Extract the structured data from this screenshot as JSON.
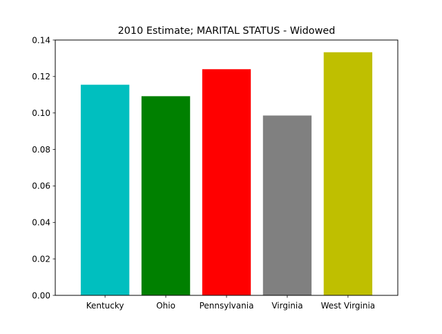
{
  "chart_data": {
    "type": "bar",
    "title": "2010 Estimate; MARITAL STATUS - Widowed",
    "xlabel": "",
    "ylabel": "",
    "categories": [
      "Kentucky",
      "Ohio",
      "Pennsylvania",
      "Virginia",
      "West Virginia"
    ],
    "values": [
      0.1155,
      0.1092,
      0.124,
      0.0986,
      0.1333
    ],
    "colors": [
      "#00bfbf",
      "#008000",
      "#ff0000",
      "#808080",
      "#bfbf00"
    ],
    "ylim": [
      0,
      0.14
    ],
    "yticks": [
      "0.00",
      "0.02",
      "0.04",
      "0.06",
      "0.08",
      "0.10",
      "0.12",
      "0.14"
    ],
    "grid": false,
    "legend": "none"
  }
}
